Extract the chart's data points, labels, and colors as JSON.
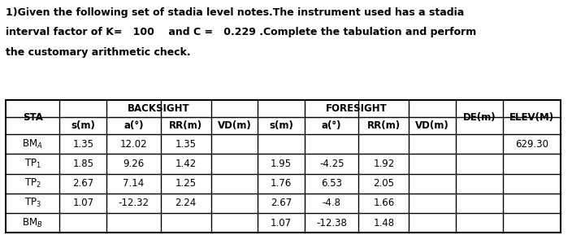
{
  "title_line1": "1)Given the following set of stadia level notes.The instrument used has a stadia",
  "title_line2": "interval factor of K=   100    and C =   0.229 .Complete the tabulation and perform",
  "title_line3": "the customary arithmetic check.",
  "sub_headers": [
    "s(m)",
    "a(°)",
    "RR(m)",
    "VD(m)",
    "s(m)",
    "a(°)",
    "RR(m)",
    "VD(m)"
  ],
  "row_labels": [
    "BM_A",
    "TP_1",
    "TP_2",
    "TP_3",
    "BM_B"
  ],
  "table_data": [
    [
      "1.35",
      "12.02",
      "1.35",
      "",
      "",
      "",
      "",
      "",
      "",
      "629.30"
    ],
    [
      "1.85",
      "9.26",
      "1.42",
      "",
      "1.95",
      "-4.25",
      "1.92",
      "",
      "",
      ""
    ],
    [
      "2.67",
      "7.14",
      "1.25",
      "",
      "1.76",
      "6.53",
      "2.05",
      "",
      "",
      ""
    ],
    [
      "1.07",
      "-12.32",
      "2.24",
      "",
      "2.67",
      "-4.8",
      "1.66",
      "",
      "",
      ""
    ],
    [
      "",
      "",
      "",
      "",
      "1.07",
      "-12.38",
      "1.48",
      "",
      "",
      ""
    ]
  ],
  "bg_color": "#ffffff",
  "font_size": 8.5,
  "title_font_size": 9.0
}
